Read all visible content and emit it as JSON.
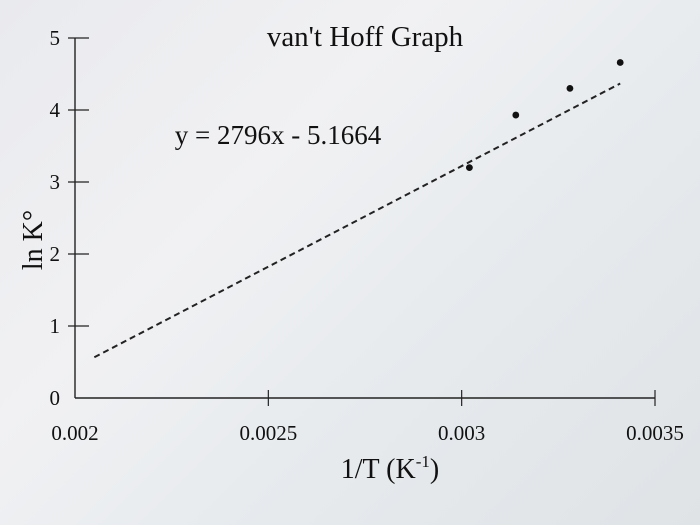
{
  "chart_data": {
    "type": "scatter",
    "title": "van't Hoff Graph",
    "xlabel_main": "1/T (K",
    "xlabel_sup": "-1",
    "xlabel_close": ")",
    "ylabel": "ln K°",
    "xlim": [
      0.002,
      0.0035
    ],
    "ylim": [
      0,
      5
    ],
    "x_ticks": [
      0.002,
      0.0025,
      0.003,
      0.0035
    ],
    "x_tick_labels": [
      "0.002",
      "0.0025",
      "0.003",
      "0.0035"
    ],
    "y_ticks": [
      0,
      1,
      2,
      3,
      4,
      5
    ],
    "y_tick_labels": [
      "0",
      "1",
      "2",
      "3",
      "4",
      "5"
    ],
    "points": [
      {
        "x": 0.00302,
        "y": 3.2
      },
      {
        "x": 0.00314,
        "y": 3.93
      },
      {
        "x": 0.00328,
        "y": 4.3
      },
      {
        "x": 0.00341,
        "y": 4.66
      }
    ],
    "trendline": {
      "equation": "y = 2796x - 5.1664",
      "slope": 2796,
      "intercept": -5.1664,
      "x_start": 0.00205,
      "x_end": 0.00341,
      "style": "dashed"
    },
    "grid": false
  }
}
